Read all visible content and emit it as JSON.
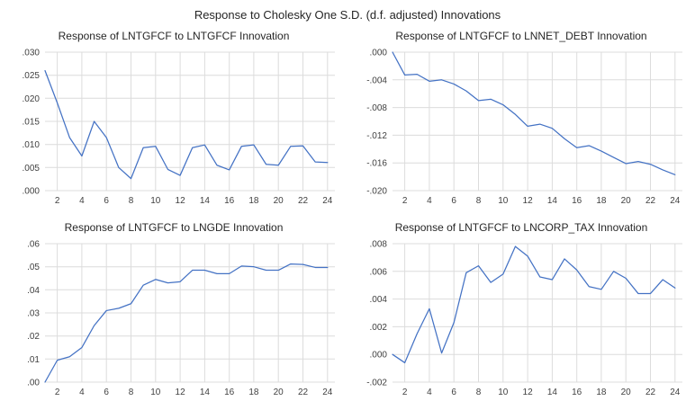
{
  "title": "Response to Cholesky One S.D. (d.f. adjusted) Innovations",
  "colors": {
    "line": "#4472C4",
    "grid": "#DCDCDC",
    "axis_text": "#404040",
    "title_text": "#262626",
    "background": "#FFFFFF"
  },
  "chart_data": [
    {
      "type": "line",
      "title": "Response of LNTGFCF to LNTGFCF Innovation",
      "x": [
        1,
        2,
        3,
        4,
        5,
        6,
        7,
        8,
        9,
        10,
        11,
        12,
        13,
        14,
        15,
        16,
        17,
        18,
        19,
        20,
        21,
        22,
        23,
        24
      ],
      "values": [
        0.026,
        0.019,
        0.0115,
        0.0075,
        0.015,
        0.0115,
        0.005,
        0.0026,
        0.0093,
        0.0096,
        0.0046,
        0.0033,
        0.0093,
        0.0099,
        0.0055,
        0.0045,
        0.0096,
        0.0099,
        0.0057,
        0.0055,
        0.0096,
        0.0097,
        0.0062,
        0.0061
      ],
      "ylim": [
        0.0,
        0.03
      ],
      "yticks": [
        0.0,
        0.005,
        0.01,
        0.015,
        0.02,
        0.025,
        0.03
      ],
      "ytick_labels": [
        ".000",
        ".005",
        ".010",
        ".015",
        ".020",
        ".025",
        ".030"
      ],
      "xticks": [
        2,
        4,
        6,
        8,
        10,
        12,
        14,
        16,
        18,
        20,
        22,
        24
      ],
      "grid": true,
      "legend": "none"
    },
    {
      "type": "line",
      "title": "Response of LNTGFCF to LNNET_DEBT Innovation",
      "x": [
        1,
        2,
        3,
        4,
        5,
        6,
        7,
        8,
        9,
        10,
        11,
        12,
        13,
        14,
        15,
        16,
        17,
        18,
        19,
        20,
        21,
        22,
        23,
        24
      ],
      "values": [
        0.0,
        -0.0033,
        -0.0032,
        -0.0042,
        -0.004,
        -0.0046,
        -0.0056,
        -0.007,
        -0.0068,
        -0.0076,
        -0.009,
        -0.0107,
        -0.0104,
        -0.011,
        -0.0125,
        -0.0138,
        -0.0135,
        -0.0143,
        -0.0152,
        -0.0161,
        -0.0158,
        -0.0162,
        -0.017,
        -0.0177
      ],
      "ylim": [
        -0.02,
        0.0
      ],
      "yticks": [
        -0.02,
        -0.016,
        -0.012,
        -0.008,
        -0.004,
        0.0
      ],
      "ytick_labels": [
        "-.020",
        "-.016",
        "-.012",
        "-.008",
        "-.004",
        ".000"
      ],
      "xticks": [
        2,
        4,
        6,
        8,
        10,
        12,
        14,
        16,
        18,
        20,
        22,
        24
      ],
      "grid": true,
      "legend": "none"
    },
    {
      "type": "line",
      "title": "Response of LNTGFCF to LNGDE Innovation",
      "x": [
        1,
        2,
        3,
        4,
        5,
        6,
        7,
        8,
        9,
        10,
        11,
        12,
        13,
        14,
        15,
        16,
        17,
        18,
        19,
        20,
        21,
        22,
        23,
        24
      ],
      "values": [
        0.0,
        0.0095,
        0.011,
        0.015,
        0.0245,
        0.031,
        0.032,
        0.034,
        0.042,
        0.0445,
        0.043,
        0.0435,
        0.0485,
        0.0485,
        0.047,
        0.047,
        0.0503,
        0.05,
        0.0485,
        0.0485,
        0.0512,
        0.051,
        0.0497,
        0.0497
      ],
      "ylim": [
        0.0,
        0.06
      ],
      "yticks": [
        0.0,
        0.01,
        0.02,
        0.03,
        0.04,
        0.05,
        0.06
      ],
      "ytick_labels": [
        ".00",
        ".01",
        ".02",
        ".03",
        ".04",
        ".05",
        ".06"
      ],
      "xticks": [
        2,
        4,
        6,
        8,
        10,
        12,
        14,
        16,
        18,
        20,
        22,
        24
      ],
      "grid": true,
      "legend": "none"
    },
    {
      "type": "line",
      "title": "Response of LNTGFCF to LNCORP_TAX Innovation",
      "x": [
        1,
        2,
        3,
        4,
        5,
        6,
        7,
        8,
        9,
        10,
        11,
        12,
        13,
        14,
        15,
        16,
        17,
        18,
        19,
        20,
        21,
        22,
        23,
        24
      ],
      "values": [
        0.0,
        -0.0006,
        0.0015,
        0.0033,
        0.0001,
        0.0023,
        0.0059,
        0.0064,
        0.0052,
        0.0058,
        0.0078,
        0.0071,
        0.0056,
        0.0054,
        0.0069,
        0.0061,
        0.0049,
        0.0047,
        0.006,
        0.0055,
        0.0044,
        0.0044,
        0.0054,
        0.0048
      ],
      "ylim": [
        -0.002,
        0.008
      ],
      "yticks": [
        -0.002,
        0.0,
        0.002,
        0.004,
        0.006,
        0.008
      ],
      "ytick_labels": [
        "-.002",
        ".000",
        ".002",
        ".004",
        ".006",
        ".008"
      ],
      "xticks": [
        2,
        4,
        6,
        8,
        10,
        12,
        14,
        16,
        18,
        20,
        22,
        24
      ],
      "grid": true,
      "legend": "none"
    }
  ]
}
